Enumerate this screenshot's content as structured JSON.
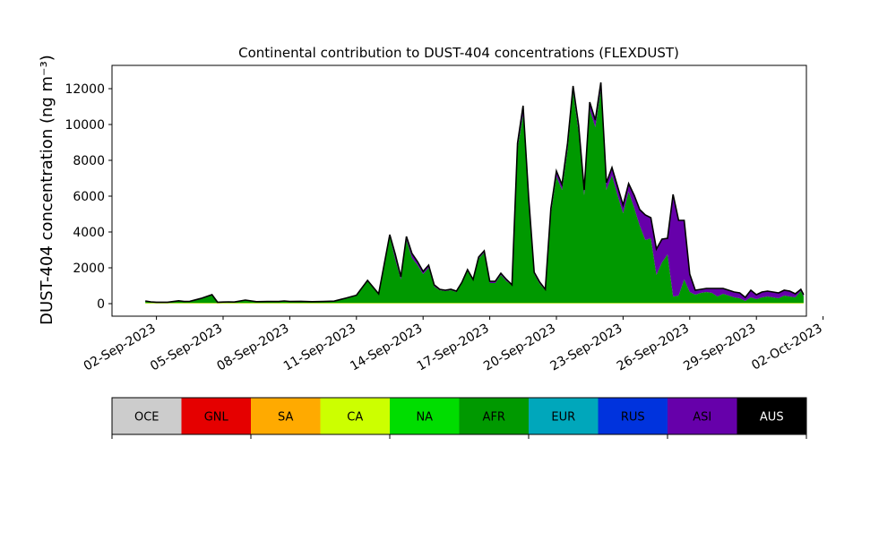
{
  "chart_data": {
    "type": "area",
    "title": "Continental contribution to DUST-404 concentrations (FLEXDUST)",
    "xlabel": "",
    "ylabel": "DUST-404 concentration (ng m⁻³)",
    "stacked": true,
    "ylim": [
      -700,
      13300
    ],
    "xlim": [
      "2023-08-31T00:00",
      "2023-10-01T06:00"
    ],
    "y_ticks": [
      0,
      2000,
      4000,
      6000,
      8000,
      10000,
      12000
    ],
    "x_ticks": [
      "2023-09-02",
      "2023-09-05",
      "2023-09-08",
      "2023-09-11",
      "2023-09-14",
      "2023-09-17",
      "2023-09-20",
      "2023-09-23",
      "2023-09-26",
      "2023-09-29",
      "2023-10-02"
    ],
    "x_tick_labels": [
      "02-Sep-2023",
      "05-Sep-2023",
      "08-Sep-2023",
      "11-Sep-2023",
      "14-Sep-2023",
      "17-Sep-2023",
      "20-Sep-2023",
      "23-Sep-2023",
      "26-Sep-2023",
      "29-Sep-2023",
      "02-Oct-2023"
    ],
    "x": [
      "2023-09-01T12:00",
      "2023-09-01T18:00",
      "2023-09-02T00:00",
      "2023-09-02T12:00",
      "2023-09-03T00:00",
      "2023-09-03T06:00",
      "2023-09-03T12:00",
      "2023-09-04T00:00",
      "2023-09-04T12:00",
      "2023-09-04T18:00",
      "2023-09-05T00:00",
      "2023-09-05T06:00",
      "2023-09-05T12:00",
      "2023-09-06T00:00",
      "2023-09-06T12:00",
      "2023-09-07T00:00",
      "2023-09-07T12:00",
      "2023-09-07T18:00",
      "2023-09-08T00:00",
      "2023-09-08T12:00",
      "2023-09-09T00:00",
      "2023-09-09T12:00",
      "2023-09-10T00:00",
      "2023-09-10T12:00",
      "2023-09-11T00:00",
      "2023-09-11T12:00",
      "2023-09-12T00:00",
      "2023-09-12T12:00",
      "2023-09-12T18:00",
      "2023-09-13T00:00",
      "2023-09-13T06:00",
      "2023-09-13T12:00",
      "2023-09-13T18:00",
      "2023-09-14T00:00",
      "2023-09-14T06:00",
      "2023-09-14T12:00",
      "2023-09-14T18:00",
      "2023-09-15T00:00",
      "2023-09-15T06:00",
      "2023-09-15T12:00",
      "2023-09-15T18:00",
      "2023-09-16T00:00",
      "2023-09-16T06:00",
      "2023-09-16T12:00",
      "2023-09-16T18:00",
      "2023-09-17T00:00",
      "2023-09-17T06:00",
      "2023-09-17T12:00",
      "2023-09-17T18:00",
      "2023-09-18T00:00",
      "2023-09-18T06:00",
      "2023-09-18T12:00",
      "2023-09-18T18:00",
      "2023-09-19T00:00",
      "2023-09-19T06:00",
      "2023-09-19T12:00",
      "2023-09-19T18:00",
      "2023-09-20T00:00",
      "2023-09-20T06:00",
      "2023-09-20T12:00",
      "2023-09-20T18:00",
      "2023-09-21T00:00",
      "2023-09-21T06:00",
      "2023-09-21T12:00",
      "2023-09-21T18:00",
      "2023-09-22T00:00",
      "2023-09-22T06:00",
      "2023-09-22T12:00",
      "2023-09-22T18:00",
      "2023-09-23T00:00",
      "2023-09-23T06:00",
      "2023-09-23T12:00",
      "2023-09-23T18:00",
      "2023-09-24T00:00",
      "2023-09-24T06:00",
      "2023-09-24T12:00",
      "2023-09-24T18:00",
      "2023-09-25T00:00",
      "2023-09-25T06:00",
      "2023-09-25T12:00",
      "2023-09-25T18:00",
      "2023-09-26T00:00",
      "2023-09-26T06:00",
      "2023-09-26T12:00",
      "2023-09-26T18:00",
      "2023-09-27T00:00",
      "2023-09-27T06:00",
      "2023-09-27T12:00",
      "2023-09-27T18:00",
      "2023-09-28T00:00",
      "2023-09-28T06:00",
      "2023-09-28T12:00",
      "2023-09-28T18:00",
      "2023-09-29T00:00",
      "2023-09-29T06:00",
      "2023-09-29T12:00",
      "2023-09-29T18:00",
      "2023-09-30T00:00",
      "2023-09-30T06:00",
      "2023-09-30T12:00",
      "2023-09-30T18:00",
      "2023-10-01T00:00",
      "2023-10-01T03:00"
    ],
    "series": [
      {
        "name": "OCE",
        "color": "#cccccc",
        "values": [
          0,
          0,
          0,
          0,
          0,
          0,
          0,
          0,
          0,
          0,
          0,
          0,
          0,
          0,
          0,
          0,
          0,
          0,
          0,
          0,
          0,
          0,
          0,
          0,
          0,
          0,
          0,
          0,
          0,
          0,
          0,
          0,
          0,
          0,
          0,
          0,
          0,
          0,
          0,
          0,
          0,
          0,
          0,
          0,
          0,
          0,
          0,
          0,
          0,
          0,
          0,
          0,
          0,
          0,
          0,
          0,
          0,
          0,
          0,
          0,
          0,
          0,
          0,
          0,
          0,
          0,
          0,
          0,
          0,
          0,
          0,
          0,
          0,
          0,
          0,
          0,
          0,
          0,
          0,
          0,
          0,
          0,
          0,
          0,
          0,
          0,
          0,
          0,
          0,
          0,
          0,
          0,
          0,
          0,
          0,
          0,
          0,
          0,
          0,
          0,
          0,
          0,
          0
        ]
      },
      {
        "name": "GNL",
        "color": "#e50000",
        "values": [
          0,
          0,
          0,
          0,
          0,
          0,
          0,
          0,
          0,
          0,
          0,
          0,
          0,
          0,
          0,
          0,
          0,
          0,
          0,
          0,
          0,
          0,
          0,
          0,
          0,
          0,
          0,
          0,
          0,
          0,
          0,
          0,
          0,
          0,
          0,
          0,
          0,
          0,
          0,
          0,
          0,
          0,
          0,
          0,
          0,
          0,
          0,
          0,
          0,
          0,
          0,
          0,
          0,
          0,
          0,
          0,
          0,
          0,
          0,
          0,
          0,
          0,
          0,
          0,
          0,
          0,
          0,
          0,
          0,
          0,
          0,
          0,
          0,
          0,
          0,
          0,
          0,
          0,
          0,
          0,
          0,
          0,
          0,
          0,
          0,
          0,
          0,
          0,
          0,
          0,
          0,
          0,
          0,
          0,
          0,
          0,
          0,
          0,
          0,
          0,
          0,
          0,
          0
        ]
      },
      {
        "name": "SA",
        "color": "#ffaa00",
        "values": [
          20,
          20,
          15,
          15,
          20,
          20,
          20,
          20,
          20,
          20,
          20,
          20,
          20,
          20,
          20,
          20,
          20,
          20,
          20,
          20,
          20,
          20,
          20,
          20,
          20,
          20,
          20,
          20,
          20,
          20,
          20,
          20,
          20,
          20,
          20,
          20,
          20,
          20,
          20,
          20,
          20,
          20,
          20,
          20,
          20,
          20,
          20,
          20,
          20,
          20,
          20,
          20,
          20,
          20,
          20,
          20,
          20,
          20,
          20,
          20,
          20,
          20,
          20,
          20,
          20,
          20,
          20,
          20,
          20,
          20,
          20,
          20,
          20,
          20,
          20,
          20,
          20,
          20,
          20,
          20,
          20,
          20,
          20,
          20,
          20,
          20,
          20,
          20,
          20,
          20,
          20,
          20,
          20,
          20,
          20,
          20,
          20,
          20,
          20,
          20,
          20,
          20,
          20
        ]
      },
      {
        "name": "CA",
        "color": "#ccff00",
        "values": [
          20,
          20,
          15,
          15,
          20,
          20,
          20,
          20,
          20,
          20,
          20,
          20,
          20,
          20,
          20,
          20,
          20,
          20,
          20,
          20,
          20,
          20,
          20,
          20,
          20,
          20,
          20,
          20,
          20,
          20,
          20,
          20,
          20,
          20,
          20,
          20,
          20,
          20,
          20,
          20,
          20,
          20,
          20,
          20,
          20,
          20,
          20,
          20,
          20,
          20,
          20,
          20,
          20,
          20,
          20,
          20,
          20,
          20,
          20,
          20,
          20,
          20,
          20,
          20,
          20,
          20,
          20,
          20,
          20,
          20,
          20,
          20,
          20,
          20,
          20,
          20,
          20,
          20,
          20,
          20,
          20,
          20,
          20,
          20,
          20,
          20,
          20,
          20,
          20,
          20,
          20,
          20,
          20,
          20,
          20,
          20,
          20,
          20,
          20,
          20,
          20,
          20,
          20
        ]
      },
      {
        "name": "NA",
        "color": "#00dd00",
        "values": [
          10,
          10,
          10,
          10,
          10,
          10,
          10,
          10,
          10,
          10,
          10,
          10,
          10,
          10,
          10,
          10,
          10,
          10,
          10,
          10,
          10,
          10,
          10,
          10,
          10,
          10,
          10,
          10,
          10,
          10,
          10,
          10,
          10,
          10,
          10,
          10,
          10,
          10,
          10,
          10,
          10,
          10,
          10,
          10,
          10,
          10,
          10,
          10,
          10,
          10,
          10,
          10,
          10,
          10,
          10,
          10,
          10,
          10,
          10,
          10,
          10,
          10,
          10,
          10,
          10,
          10,
          10,
          10,
          10,
          10,
          10,
          10,
          10,
          10,
          10,
          10,
          10,
          10,
          10,
          10,
          10,
          10,
          10,
          10,
          10,
          10,
          10,
          10,
          10,
          10,
          10,
          10,
          10,
          10,
          10,
          10,
          10,
          10,
          10,
          10,
          10,
          10,
          10
        ]
      },
      {
        "name": "AFR",
        "color": "#009900",
        "values": [
          100,
          50,
          40,
          40,
          110,
          70,
          80,
          240,
          450,
          30,
          40,
          50,
          40,
          150,
          60,
          70,
          70,
          100,
          70,
          80,
          60,
          70,
          90,
          250,
          420,
          1250,
          450,
          3700,
          2400,
          1300,
          3500,
          2500,
          2100,
          1600,
          1950,
          900,
          700,
          650,
          700,
          600,
          1100,
          1800,
          1250,
          2450,
          2800,
          1100,
          1100,
          1550,
          1200,
          1000,
          8600,
          10500,
          5600,
          1600,
          1050,
          700,
          4950,
          7050,
          6300,
          8500,
          11800,
          9500,
          6000,
          10800,
          9800,
          11900,
          6300,
          7100,
          6000,
          5000,
          6200,
          5300,
          4300,
          3500,
          3600,
          1550,
          2250,
          2700,
          350,
          400,
          1300,
          600,
          450,
          550,
          600,
          550,
          350,
          500,
          400,
          300,
          250,
          100,
          300,
          200,
          300,
          350,
          300,
          250,
          400,
          350,
          300,
          650,
          350
        ]
      },
      {
        "name": "EUR",
        "color": "#00a7bb",
        "values": [
          0,
          0,
          0,
          0,
          0,
          0,
          0,
          0,
          0,
          0,
          0,
          0,
          0,
          0,
          0,
          0,
          0,
          0,
          0,
          0,
          0,
          0,
          0,
          0,
          0,
          0,
          0,
          0,
          0,
          0,
          0,
          0,
          0,
          0,
          0,
          0,
          0,
          0,
          0,
          0,
          0,
          0,
          0,
          0,
          0,
          0,
          0,
          0,
          0,
          0,
          0,
          0,
          0,
          0,
          0,
          0,
          0,
          0,
          0,
          0,
          0,
          0,
          0,
          0,
          0,
          0,
          0,
          0,
          0,
          0,
          0,
          0,
          0,
          0,
          0,
          0,
          0,
          0,
          0,
          0,
          0,
          0,
          0,
          0,
          0,
          0,
          0,
          0,
          0,
          0,
          0,
          0,
          0,
          0,
          0,
          0,
          0,
          0,
          0,
          0,
          0,
          0,
          0
        ]
      },
      {
        "name": "RUS",
        "color": "#0033dd",
        "values": [
          0,
          0,
          0,
          0,
          0,
          0,
          0,
          0,
          0,
          0,
          0,
          0,
          0,
          0,
          0,
          0,
          0,
          0,
          0,
          0,
          0,
          0,
          0,
          0,
          0,
          0,
          0,
          0,
          0,
          0,
          0,
          0,
          0,
          0,
          0,
          0,
          0,
          0,
          0,
          0,
          0,
          0,
          0,
          0,
          0,
          0,
          0,
          0,
          0,
          0,
          0,
          0,
          0,
          0,
          0,
          0,
          0,
          0,
          0,
          0,
          0,
          0,
          0,
          0,
          0,
          0,
          0,
          0,
          0,
          0,
          0,
          0,
          0,
          0,
          0,
          0,
          0,
          0,
          0,
          0,
          0,
          0,
          0,
          0,
          0,
          0,
          0,
          0,
          0,
          0,
          0,
          0,
          0,
          0,
          0,
          0,
          0,
          0,
          0,
          0,
          0,
          0,
          0
        ]
      },
      {
        "name": "ASI",
        "color": "#6600aa",
        "values": [
          0,
          0,
          0,
          0,
          0,
          0,
          0,
          0,
          0,
          0,
          0,
          0,
          0,
          0,
          0,
          0,
          0,
          0,
          0,
          0,
          0,
          0,
          0,
          0,
          0,
          0,
          50,
          100,
          300,
          150,
          200,
          250,
          200,
          150,
          150,
          100,
          50,
          50,
          50,
          50,
          50,
          50,
          50,
          100,
          100,
          100,
          100,
          100,
          100,
          0,
          300,
          500,
          300,
          100,
          100,
          50,
          300,
          300,
          300,
          400,
          300,
          400,
          300,
          400,
          400,
          400,
          400,
          450,
          500,
          450,
          450,
          700,
          900,
          1400,
          1150,
          1450,
          1300,
          900,
          5700,
          4200,
          3300,
          1000,
          250,
          200,
          200,
          250,
          450,
          300,
          300,
          300,
          300,
          200,
          400,
          250,
          300,
          300,
          300,
          300,
          300,
          300,
          200,
          100,
          100
        ]
      },
      {
        "name": "AUS",
        "color": "#000000",
        "values": [
          0,
          0,
          0,
          0,
          0,
          0,
          0,
          0,
          0,
          0,
          0,
          0,
          0,
          0,
          0,
          0,
          0,
          0,
          0,
          0,
          0,
          0,
          0,
          0,
          0,
          0,
          0,
          0,
          0,
          0,
          0,
          0,
          0,
          0,
          0,
          0,
          0,
          0,
          0,
          0,
          0,
          0,
          0,
          0,
          0,
          0,
          0,
          0,
          0,
          0,
          0,
          0,
          0,
          0,
          0,
          0,
          0,
          0,
          0,
          0,
          0,
          0,
          0,
          0,
          0,
          0,
          0,
          0,
          0,
          0,
          0,
          0,
          0,
          0,
          0,
          0,
          0,
          0,
          0,
          0,
          0,
          0,
          0,
          0,
          0,
          0,
          0,
          0,
          0,
          0,
          0,
          0,
          0,
          0,
          0,
          0,
          0,
          0,
          0,
          0,
          0,
          0,
          0
        ]
      }
    ],
    "legend": {
      "placement": "bottom",
      "entries": [
        {
          "label": "OCE",
          "color": "#cccccc",
          "text_color": "#000000"
        },
        {
          "label": "GNL",
          "color": "#e50000",
          "text_color": "#000000"
        },
        {
          "label": "SA",
          "color": "#ffaa00",
          "text_color": "#000000"
        },
        {
          "label": "CA",
          "color": "#ccff00",
          "text_color": "#000000"
        },
        {
          "label": "NA",
          "color": "#00dd00",
          "text_color": "#000000"
        },
        {
          "label": "AFR",
          "color": "#009900",
          "text_color": "#000000"
        },
        {
          "label": "EUR",
          "color": "#00a7bb",
          "text_color": "#000000"
        },
        {
          "label": "RUS",
          "color": "#0033dd",
          "text_color": "#000000"
        },
        {
          "label": "ASI",
          "color": "#6600aa",
          "text_color": "#000000"
        },
        {
          "label": "AUS",
          "color": "#000000",
          "text_color": "#ffffff"
        }
      ]
    },
    "outline_color": "#000000",
    "grid": false
  }
}
